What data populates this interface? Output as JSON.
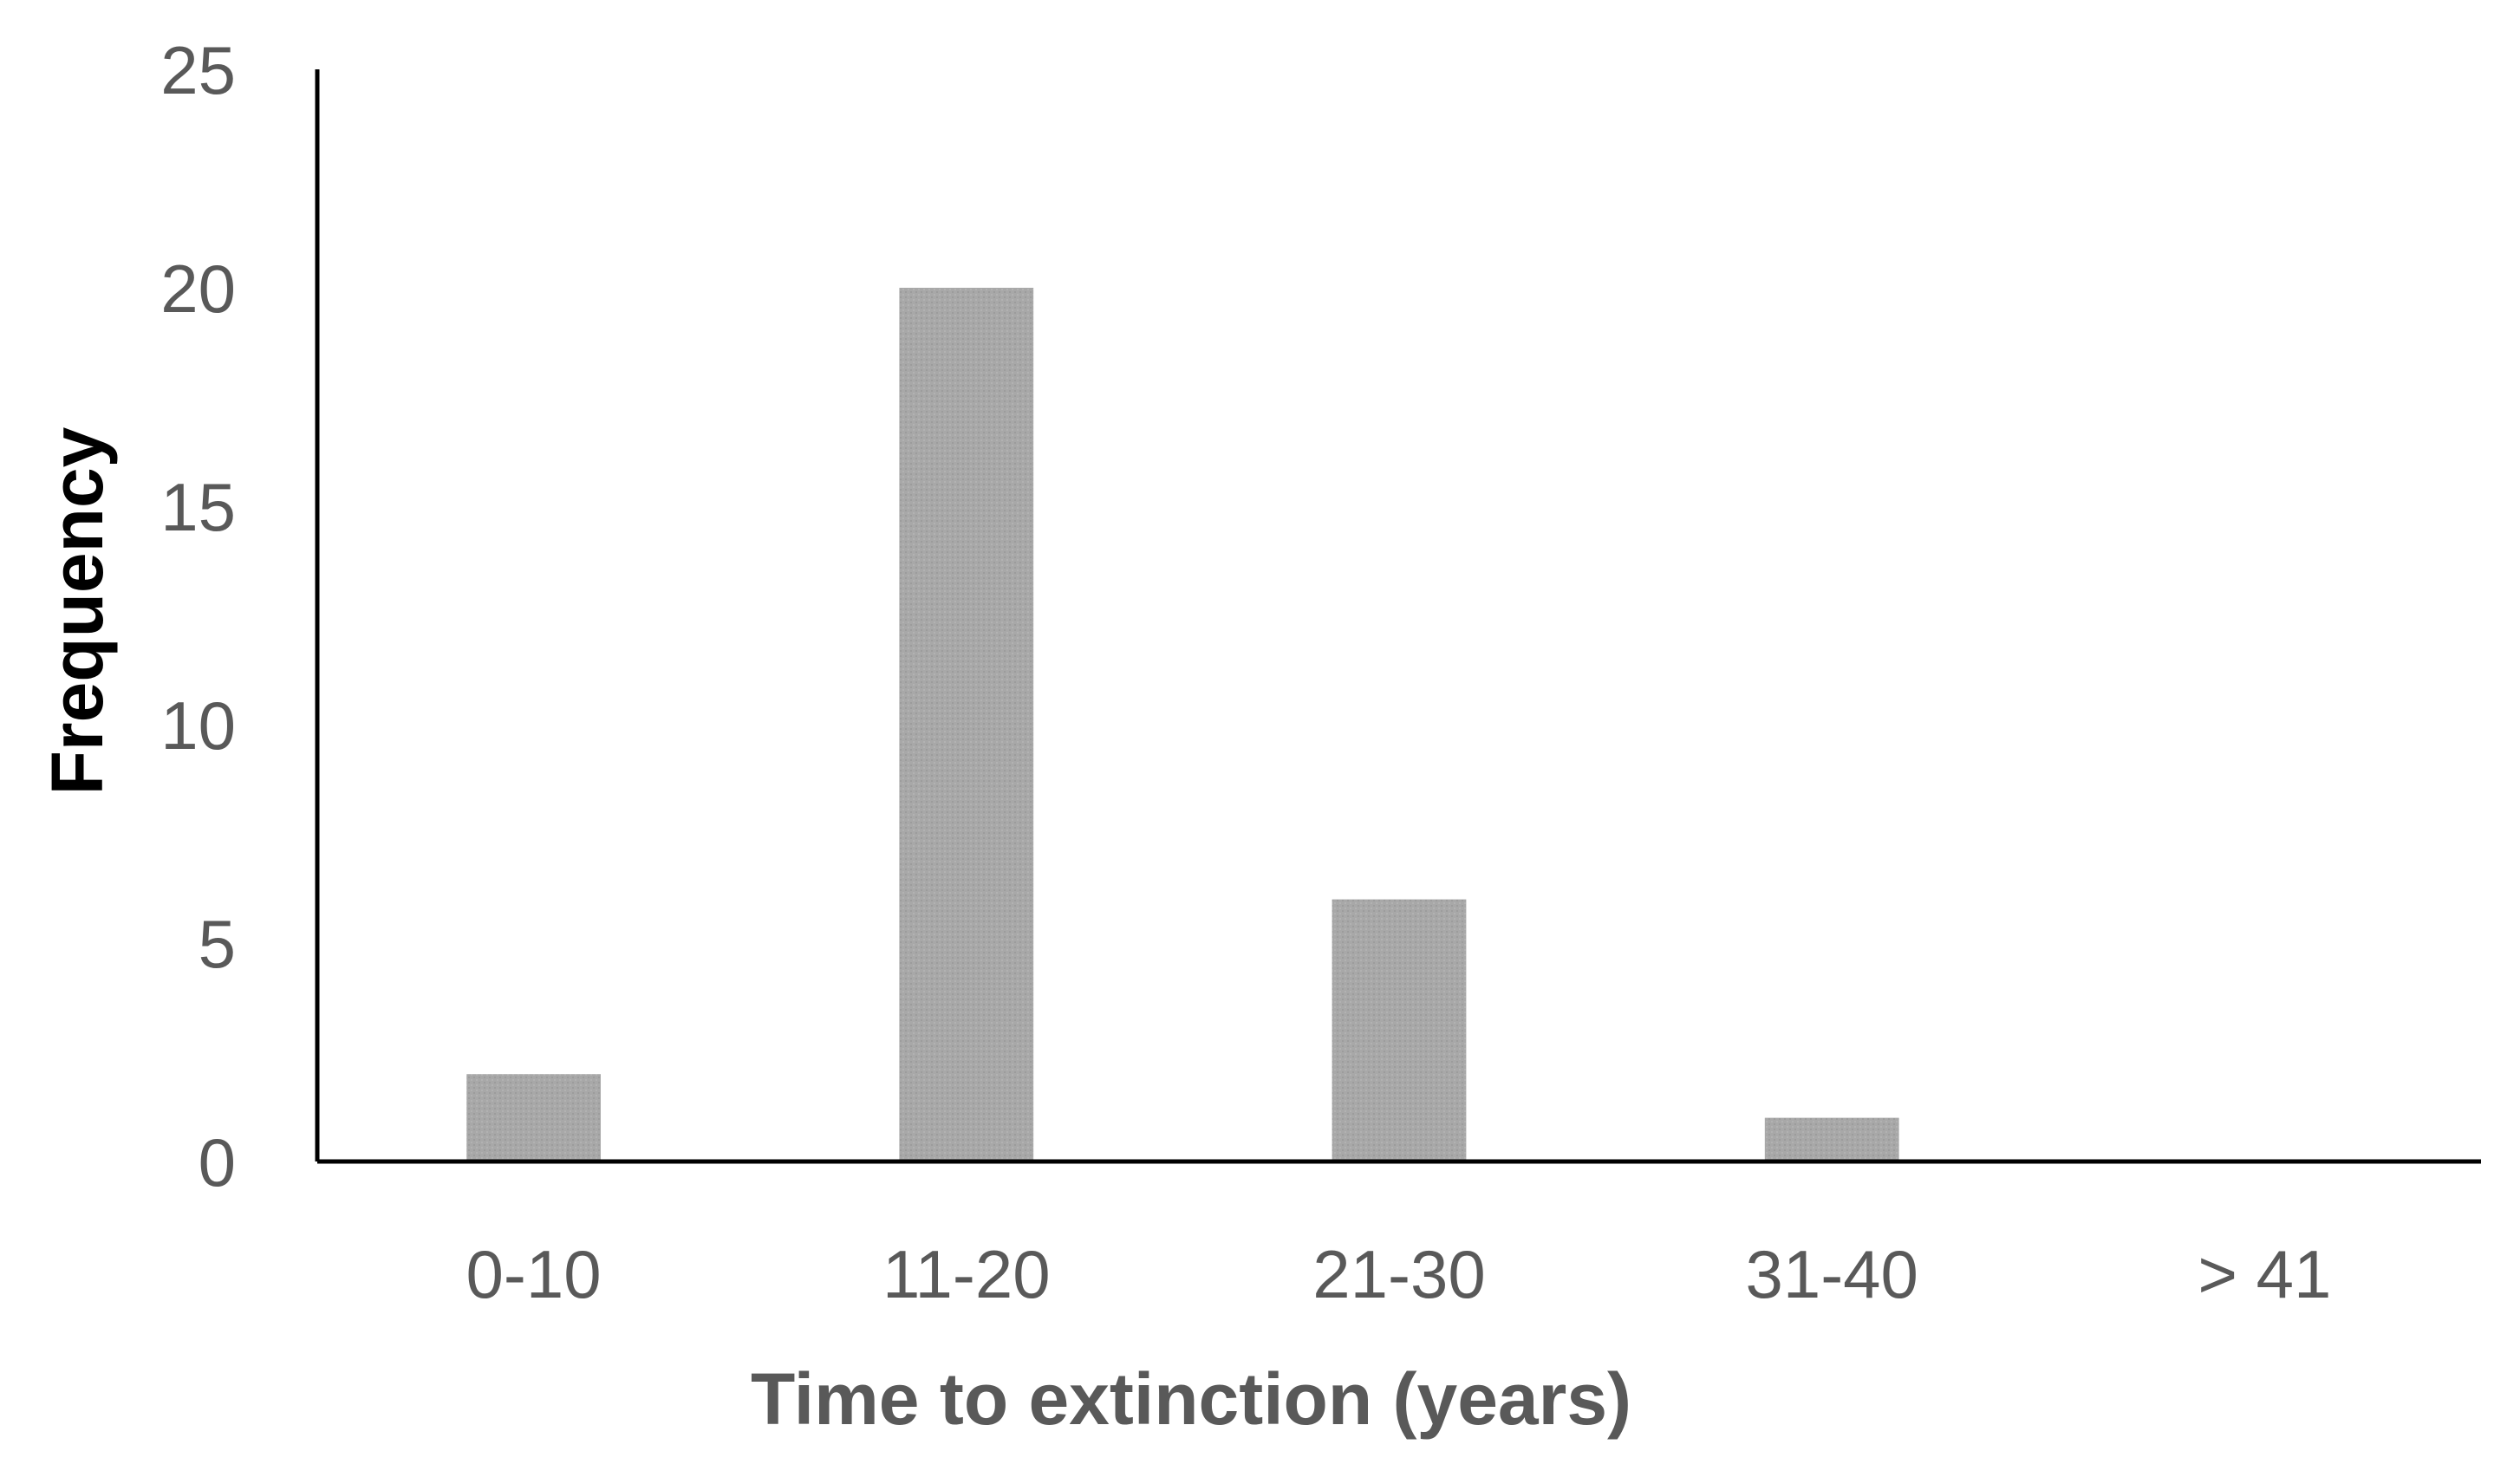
{
  "chart_data": {
    "type": "bar",
    "title": "",
    "xlabel": "Time to extinction (years)",
    "ylabel": "Frequency",
    "categories": [
      "0-10",
      "11-20",
      "21-30",
      "31-40",
      "> 41"
    ],
    "values": [
      2,
      20,
      6,
      1,
      0
    ],
    "ylim": [
      0,
      25
    ],
    "yticks": [
      0,
      5,
      10,
      15,
      20,
      25
    ],
    "grid": false,
    "legend": "none",
    "colors": {
      "bar": "#a6a6a6",
      "axis": "#000000",
      "tick_text": "#595959",
      "xlabel_text": "#595959",
      "ylabel_text": "#000000"
    }
  }
}
